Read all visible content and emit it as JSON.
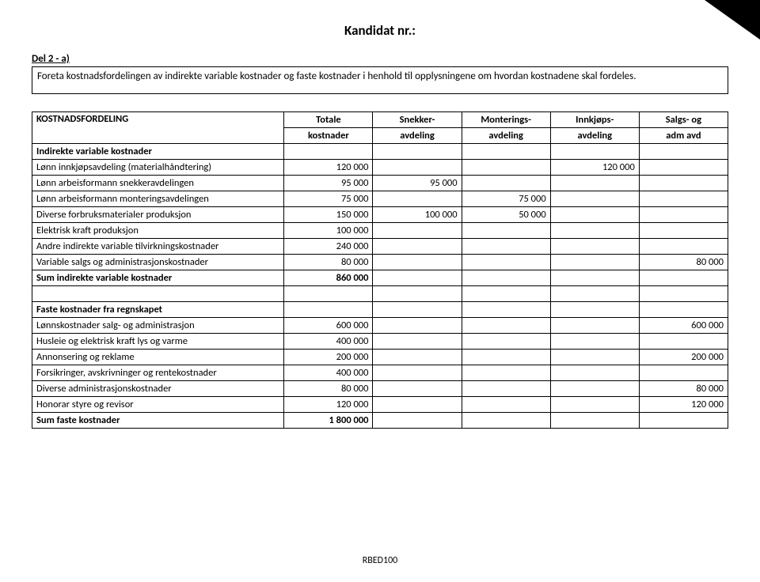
{
  "header": {
    "title": "Kandidat nr.:",
    "section": "Del 2 - a)",
    "instructions": "Foreta kostnadsfordelingen av indirekte variable kostnader og faste kostnader i henhold til opplysningene om hvordan kostnadene skal fordeles."
  },
  "table": {
    "title": "KOSTNADSFORDELING",
    "col_headers": [
      {
        "l1": "Totale",
        "l2": "kostnader"
      },
      {
        "l1": "Snekker-",
        "l2": "avdeling"
      },
      {
        "l1": "Monterings-",
        "l2": "avdeling"
      },
      {
        "l1": "Innkjøps-",
        "l2": "avdeling"
      },
      {
        "l1": "Salgs- og",
        "l2": "adm avd"
      }
    ],
    "section1_title": "Indirekte variable kostnader",
    "section1_rows": [
      {
        "label": "Lønn innkjøpsavdeling (materialhåndtering)",
        "c1": "120 000",
        "c2": "",
        "c3": "",
        "c4": "120 000",
        "c5": ""
      },
      {
        "label": "Lønn arbeisformann snekkeravdelingen",
        "c1": "95 000",
        "c2": "95 000",
        "c3": "",
        "c4": "",
        "c5": ""
      },
      {
        "label": "Lønn arbeisformann monteringsavdelingen",
        "c1": "75 000",
        "c2": "",
        "c3": "75 000",
        "c4": "",
        "c5": ""
      },
      {
        "label": "Diverse forbruksmaterialer produksjon",
        "c1": "150 000",
        "c2": "100 000",
        "c3": "50 000",
        "c4": "",
        "c5": ""
      },
      {
        "label": "Elektrisk kraft produksjon",
        "c1": "100 000",
        "c2": "",
        "c3": "",
        "c4": "",
        "c5": ""
      },
      {
        "label": "Andre indirekte variable tilvirkningskostnader",
        "c1": "240 000",
        "c2": "",
        "c3": "",
        "c4": "",
        "c5": ""
      },
      {
        "label": "Variable salgs og administrasjonskostnader",
        "c1": "80 000",
        "c2": "",
        "c3": "",
        "c4": "",
        "c5": "80 000"
      }
    ],
    "section1_sum": {
      "label": "Sum indirekte variable kostnader",
      "c1": "860 000",
      "c2": "",
      "c3": "",
      "c4": "",
      "c5": ""
    },
    "section2_title": "Faste kostnader fra regnskapet",
    "section2_rows": [
      {
        "label": "Lønnskostnader salg- og administrasjon",
        "c1": "600 000",
        "c2": "",
        "c3": "",
        "c4": "",
        "c5": "600 000"
      },
      {
        "label": "Husleie og elektrisk kraft lys og varme",
        "c1": "400 000",
        "c2": "",
        "c3": "",
        "c4": "",
        "c5": ""
      },
      {
        "label": "Annonsering og reklame",
        "c1": "200 000",
        "c2": "",
        "c3": "",
        "c4": "",
        "c5": "200 000"
      },
      {
        "label": "Forsikringer, avskrivninger og rentekostnader",
        "c1": "400 000",
        "c2": "",
        "c3": "",
        "c4": "",
        "c5": ""
      },
      {
        "label": "Diverse administrasjonskostnader",
        "c1": "80 000",
        "c2": "",
        "c3": "",
        "c4": "",
        "c5": "80 000"
      },
      {
        "label": "Honorar styre og revisor",
        "c1": "120 000",
        "c2": "",
        "c3": "",
        "c4": "",
        "c5": "120 000"
      }
    ],
    "section2_sum": {
      "label": "Sum faste kostnader",
      "c1": "1 800 000",
      "c2": "",
      "c3": "",
      "c4": "",
      "c5": ""
    }
  },
  "footer": {
    "code": "RBED100"
  }
}
